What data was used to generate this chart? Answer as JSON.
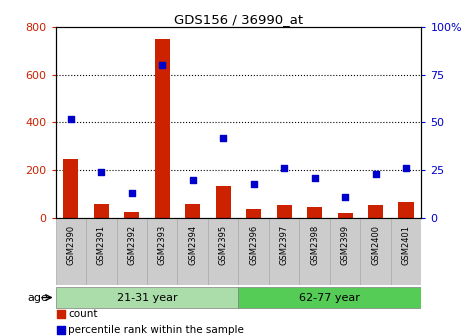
{
  "title": "GDS156 / 36990_at",
  "samples": [
    "GSM2390",
    "GSM2391",
    "GSM2392",
    "GSM2393",
    "GSM2394",
    "GSM2395",
    "GSM2396",
    "GSM2397",
    "GSM2398",
    "GSM2399",
    "GSM2400",
    "GSM2401"
  ],
  "count_values": [
    245,
    57,
    25,
    750,
    57,
    135,
    38,
    55,
    48,
    22,
    55,
    65
  ],
  "percentile_values": [
    52,
    24,
    13,
    80,
    20,
    42,
    18,
    26,
    21,
    11,
    23,
    26
  ],
  "ylim_left": [
    0,
    800
  ],
  "ylim_right": [
    0,
    100
  ],
  "yticks_left": [
    0,
    200,
    400,
    600,
    800
  ],
  "yticks_right": [
    0,
    25,
    50,
    75,
    100
  ],
  "bar_color": "#cc2200",
  "dot_color": "#0000cc",
  "group1_label": "21-31 year",
  "group2_label": "62-77 year",
  "group1_count": 6,
  "group2_count": 6,
  "group1_color": "#aaddaa",
  "group2_color": "#55cc55",
  "age_label": "age",
  "legend_count": "count",
  "legend_percentile": "percentile rank within the sample",
  "grid_dotted_ticks": [
    200,
    400,
    600
  ],
  "col_header_color": "#cccccc",
  "col_header_edge": "#aaaaaa"
}
